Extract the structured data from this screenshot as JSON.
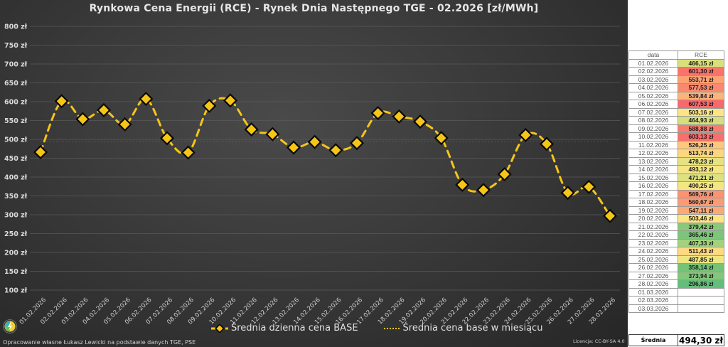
{
  "chart_data": {
    "type": "line",
    "title": "Rynkowa Cena Energii (RCE) - Rynek Dnia Następnego TGE - 02.2026 [zł/MWh]",
    "xlabel": "",
    "ylabel": "",
    "ylim": [
      100,
      800
    ],
    "ytick_step": 50,
    "y_tick_labels": [
      "800 zł",
      "750 zł",
      "700 zł",
      "650 zł",
      "600 zł",
      "550 zł",
      "500 zł",
      "450 zł",
      "400 zł",
      "350 zł",
      "300 zł",
      "250 zł",
      "200 zł",
      "150 zł",
      "100 zł"
    ],
    "grid": true,
    "legend_position": "bottom",
    "categories": [
      "01.02.2026",
      "02.02.2026",
      "03.02.2026",
      "04.02.2026",
      "05.02.2026",
      "06.02.2026",
      "07.02.2026",
      "08.02.2026",
      "09.02.2026",
      "10.02.2026",
      "11.02.2026",
      "12.02.2026",
      "13.02.2026",
      "14.02.2026",
      "15.02.2026",
      "16.02.2026",
      "17.02.2026",
      "18.02.2026",
      "19.02.2026",
      "20.02.2026",
      "21.02.2026",
      "22.02.2026",
      "23.02.2026",
      "24.02.2026",
      "25.02.2026",
      "26.02.2026",
      "27.02.2026",
      "28.02.2026"
    ],
    "series": [
      {
        "name": "Średnia dzienna cena BASE",
        "color": "#f5c518",
        "values": [
          466.15,
          601.3,
          553.71,
          577.53,
          539.84,
          607.53,
          503.16,
          464.93,
          588.88,
          603.13,
          526.25,
          513.74,
          478.23,
          493.12,
          471.21,
          490.25,
          569.76,
          560.67,
          547.11,
          503.46,
          379.42,
          365.46,
          407.33,
          511.43,
          487.85,
          358.14,
          373.94,
          296.86
        ]
      },
      {
        "name": "Średnia cena base w miesiącu",
        "color": "#f5c518",
        "values": [
          494.3
        ]
      }
    ]
  },
  "header": {
    "title": "Rynkowa Cena Energii (RCE) - Rynek Dnia Następnego TGE - 02.2026 [zł/MWh]"
  },
  "legend": {
    "daily": "Średnia dzienna cena BASE",
    "monthly": "Średnia cena base w miesiącu"
  },
  "footer": {
    "credit": "Opracowanie własne Łukasz Lewicki na podstawie danych TGE, PSE",
    "license": "Licencja: CC-BY-SA 4.0"
  },
  "table": {
    "headers": [
      "data",
      "RCE"
    ],
    "rows": [
      {
        "date": "01.02.2026",
        "value": "466,15 zł",
        "color": "#d9e07a"
      },
      {
        "date": "02.02.2026",
        "value": "601,30 zł",
        "color": "#f8736c"
      },
      {
        "date": "03.02.2026",
        "value": "553,71 zł",
        "color": "#fba276"
      },
      {
        "date": "04.02.2026",
        "value": "577,53 zł",
        "color": "#f98a70"
      },
      {
        "date": "05.02.2026",
        "value": "539,84 zł",
        "color": "#fcb47a"
      },
      {
        "date": "06.02.2026",
        "value": "607,53 zł",
        "color": "#f8696b"
      },
      {
        "date": "07.02.2026",
        "value": "503,16 zł",
        "color": "#fee583"
      },
      {
        "date": "08.02.2026",
        "value": "464,93 zł",
        "color": "#d7df7d"
      },
      {
        "date": "09.02.2026",
        "value": "588,88 zł",
        "color": "#f97d6e"
      },
      {
        "date": "10.02.2026",
        "value": "603,13 zł",
        "color": "#f8706c"
      },
      {
        "date": "11.02.2026",
        "value": "526,25 zł",
        "color": "#fdc77d"
      },
      {
        "date": "12.02.2026",
        "value": "513,74 zł",
        "color": "#fdd780"
      },
      {
        "date": "13.02.2026",
        "value": "478,23 zł",
        "color": "#e5e282"
      },
      {
        "date": "14.02.2026",
        "value": "493,12 zł",
        "color": "#f6e683"
      },
      {
        "date": "15.02.2026",
        "value": "471,21 zł",
        "color": "#dde17f"
      },
      {
        "date": "16.02.2026",
        "value": "490,25 zł",
        "color": "#f3e683"
      },
      {
        "date": "17.02.2026",
        "value": "569,76 zł",
        "color": "#fa9372"
      },
      {
        "date": "18.02.2026",
        "value": "560,67 zł",
        "color": "#fa9b74"
      },
      {
        "date": "19.02.2026",
        "value": "547,11 zł",
        "color": "#fbaa77"
      },
      {
        "date": "20.02.2026",
        "value": "503,46 zł",
        "color": "#fee583"
      },
      {
        "date": "21.02.2026",
        "value": "379,42 zł",
        "color": "#89c97a"
      },
      {
        "date": "22.02.2026",
        "value": "365,46 zł",
        "color": "#7cc57a"
      },
      {
        "date": "23.02.2026",
        "value": "407,33 zł",
        "color": "#a3d27e"
      },
      {
        "date": "24.02.2026",
        "value": "511,43 zł",
        "color": "#fed981"
      },
      {
        "date": "25.02.2026",
        "value": "487,85 zł",
        "color": "#f0e583"
      },
      {
        "date": "26.02.2026",
        "value": "358,14 zł",
        "color": "#75c379"
      },
      {
        "date": "27.02.2026",
        "value": "373,94 zł",
        "color": "#84c77a"
      },
      {
        "date": "28.02.2026",
        "value": "296,86 zł",
        "color": "#63be7b"
      },
      {
        "date": "01.03.2026",
        "value": "",
        "color": "#ffffff"
      },
      {
        "date": "02.03.2026",
        "value": "",
        "color": "#ffffff"
      },
      {
        "date": "03.03.2026",
        "value": "",
        "color": "#ffffff"
      }
    ],
    "average_label": "Średnia",
    "average_value": "494,30 zł"
  }
}
